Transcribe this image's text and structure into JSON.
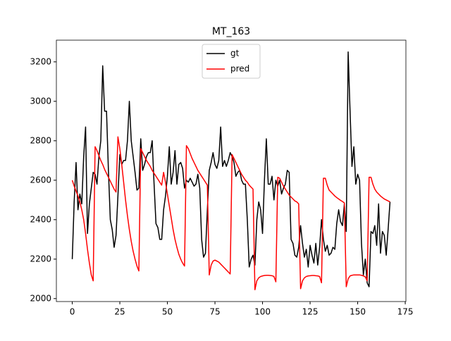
{
  "chart_data": {
    "type": "line",
    "title": "MT_163",
    "x": [
      0,
      1,
      2,
      3,
      4,
      5,
      6,
      7,
      8,
      9,
      10,
      11,
      12,
      13,
      14,
      15,
      16,
      17,
      18,
      19,
      20,
      21,
      22,
      23,
      24,
      25,
      26,
      27,
      28,
      29,
      30,
      31,
      32,
      33,
      34,
      35,
      36,
      37,
      38,
      39,
      40,
      41,
      42,
      43,
      44,
      45,
      46,
      47,
      48,
      49,
      50,
      51,
      52,
      53,
      54,
      55,
      56,
      57,
      58,
      59,
      60,
      61,
      62,
      63,
      64,
      65,
      66,
      67,
      68,
      69,
      70,
      71,
      72,
      73,
      74,
      75,
      76,
      77,
      78,
      79,
      80,
      81,
      82,
      83,
      84,
      85,
      86,
      87,
      88,
      89,
      90,
      91,
      92,
      93,
      94,
      95,
      96,
      97,
      98,
      99,
      100,
      101,
      102,
      103,
      104,
      105,
      106,
      107,
      108,
      109,
      110,
      111,
      112,
      113,
      114,
      115,
      116,
      117,
      118,
      119,
      120,
      121,
      122,
      123,
      124,
      125,
      126,
      127,
      128,
      129,
      130,
      131,
      132,
      133,
      134,
      135,
      136,
      137,
      138,
      139,
      140,
      141,
      142,
      143,
      144,
      145,
      146,
      147,
      148,
      149,
      150,
      151,
      152,
      153,
      154,
      155,
      156,
      157,
      158,
      159,
      160,
      161,
      162,
      163,
      164,
      165,
      166,
      167
    ],
    "series": [
      {
        "name": "gt",
        "color": "#000000",
        "values": [
          2200,
          2490,
          2690,
          2450,
          2530,
          2480,
          2720,
          2870,
          2330,
          2480,
          2560,
          2640,
          2630,
          2580,
          2720,
          2800,
          3180,
          2950,
          2950,
          2650,
          2400,
          2350,
          2260,
          2320,
          2520,
          2730,
          2680,
          2700,
          2700,
          2800,
          3000,
          2800,
          2720,
          2640,
          2550,
          2560,
          2810,
          2650,
          2680,
          2720,
          2740,
          2740,
          2800,
          2580,
          2380,
          2360,
          2300,
          2300,
          2450,
          2520,
          2620,
          2770,
          2580,
          2640,
          2750,
          2580,
          2680,
          2690,
          2660,
          2560,
          2600,
          2590,
          2610,
          2590,
          2570,
          2580,
          2630,
          2560,
          2300,
          2210,
          2230,
          2450,
          2650,
          2690,
          2740,
          2680,
          2660,
          2700,
          2870,
          2670,
          2700,
          2670,
          2700,
          2740,
          2720,
          2690,
          2620,
          2640,
          2650,
          2600,
          2580,
          2580,
          2400,
          2160,
          2200,
          2220,
          2170,
          2400,
          2490,
          2450,
          2330,
          2600,
          2810,
          2580,
          2580,
          2620,
          2500,
          2600,
          2570,
          2600,
          2530,
          2560,
          2580,
          2650,
          2640,
          2300,
          2280,
          2220,
          2210,
          2260,
          2370,
          2280,
          2210,
          2250,
          2160,
          2270,
          2220,
          2180,
          2280,
          2170,
          2260,
          2400,
          2300,
          2240,
          2270,
          2220,
          2230,
          2260,
          2250,
          2380,
          2450,
          2390,
          2370,
          2480,
          2340,
          3250,
          2950,
          2670,
          2770,
          2580,
          2630,
          2600,
          2280,
          2120,
          2200,
          2080,
          2060,
          2340,
          2330,
          2370,
          2270,
          2480,
          2230,
          2340,
          2320,
          2220,
          2350,
          2490
        ]
      },
      {
        "name": "pred",
        "color": "#ff0000",
        "values": [
          2600,
          2570,
          2545,
          2520,
          2490,
          2450,
          2400,
          2330,
          2250,
          2180,
          2120,
          2090,
          2770,
          2750,
          2725,
          2700,
          2680,
          2655,
          2635,
          2615,
          2595,
          2575,
          2555,
          2540,
          2820,
          2760,
          2680,
          2590,
          2500,
          2420,
          2350,
          2290,
          2240,
          2200,
          2165,
          2140,
          2760,
          2740,
          2720,
          2700,
          2685,
          2670,
          2650,
          2635,
          2620,
          2605,
          2590,
          2575,
          2640,
          2590,
          2530,
          2470,
          2410,
          2350,
          2300,
          2260,
          2225,
          2200,
          2180,
          2165,
          2775,
          2760,
          2735,
          2710,
          2690,
          2670,
          2650,
          2635,
          2620,
          2605,
          2590,
          2575,
          2120,
          2170,
          2190,
          2195,
          2190,
          2185,
          2175,
          2165,
          2155,
          2145,
          2135,
          2125,
          2730,
          2710,
          2690,
          2670,
          2650,
          2630,
          2615,
          2600,
          2590,
          2575,
          2565,
          2555,
          2045,
          2090,
          2105,
          2112,
          2115,
          2117,
          2118,
          2118,
          2117,
          2116,
          2112,
          2085,
          2615,
          2610,
          2590,
          2570,
          2555,
          2540,
          2525,
          2515,
          2505,
          2495,
          2490,
          2480,
          2050,
          2090,
          2105,
          2112,
          2115,
          2116,
          2117,
          2117,
          2116,
          2115,
          2112,
          2080,
          2610,
          2610,
          2575,
          2550,
          2540,
          2530,
          2520,
          2512,
          2505,
          2498,
          2492,
          2485,
          2060,
          2100,
          2115,
          2118,
          2120,
          2120,
          2120,
          2120,
          2118,
          2115,
          2110,
          2090,
          2615,
          2615,
          2580,
          2555,
          2540,
          2530,
          2520,
          2512,
          2505,
          2500,
          2495,
          2490
        ]
      }
    ],
    "xlim": [
      -8.35,
      175.35
    ],
    "ylim": [
      1985,
      3310
    ],
    "xticks": [
      0,
      25,
      50,
      75,
      100,
      125,
      150,
      175
    ],
    "yticks": [
      2000,
      2200,
      2400,
      2600,
      2800,
      3000,
      3200
    ],
    "legend": "upper center"
  }
}
